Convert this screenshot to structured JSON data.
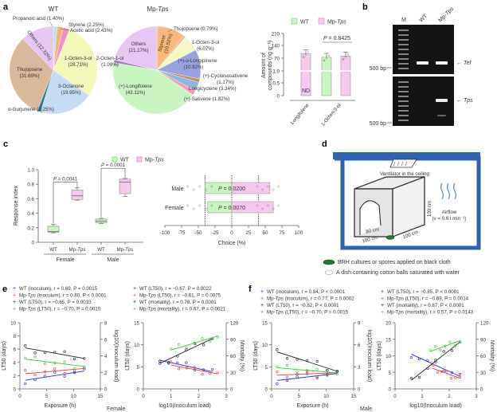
{
  "panels": {
    "a": "a",
    "b": "b",
    "c": "c",
    "d": "d",
    "e": "e",
    "f": "f"
  },
  "chart_data": [
    {
      "id": "a-pie-wt",
      "type": "pie",
      "title": "WT",
      "slices": [
        {
          "label": "Propanoic acid",
          "value": 1.4,
          "text": "Propanoic acid (1.40%)",
          "color": "#b8e6d6"
        },
        {
          "label": "Styrene",
          "value": 2.25,
          "text": "Styrene (2.25%)",
          "color": "#f7b27a"
        },
        {
          "label": "Acetic acid",
          "value": 2.43,
          "text": "Acetic acid (2.43%)",
          "color": "#f68cc3"
        },
        {
          "label": "1-Octen-3-ol",
          "value": 28.71,
          "text": "1-Octen-3-ol (28.71%)",
          "color": "#f3f8b8"
        },
        {
          "label": "3-Octanone",
          "value": 19.95,
          "text": "3-Octanone (19.95%)",
          "color": "#c6dcf5"
        },
        {
          "label": "α-Gurjunene",
          "value": 1.25,
          "text": "α-Gurjunene (1.25%)",
          "color": "#1d7f8c"
        },
        {
          "label": "Thujopsene",
          "value": 31.69,
          "text": "Thujopsene (31.69%)",
          "color": "#d9b99b"
        },
        {
          "label": "Others",
          "value": 12.32,
          "text": "Others (12.32%)",
          "color": "#e8c6f3"
        }
      ]
    },
    {
      "id": "a-pie-mptps",
      "type": "pie",
      "title": "Mp-Tps",
      "slices": [
        {
          "label": "Styrene",
          "value": 10.52,
          "text": "Styrene (10.52%)",
          "color": "#fbb878"
        },
        {
          "label": "Thujopsene",
          "value": 0.79,
          "text": "Thujopsene (0.79%)",
          "color": "#d9b99b"
        },
        {
          "label": "1-Octen-3-ol",
          "value": 6.07,
          "text": "1-Octen-3-ol (6.07%)",
          "color": "#f3f8c4"
        },
        {
          "label": "(+)-α-Longipinene",
          "value": 10.92,
          "text": "(+)-α-Longipinene (10.92%)",
          "color": "#9aa3e0"
        },
        {
          "label": "(+)-Cycloisosativene",
          "value": 1.17,
          "text": "(+)-Cycloisosativene (1.17%)",
          "color": "#c08a50"
        },
        {
          "label": "Longicyclene",
          "value": 3.34,
          "text": "Longicyclene (3.34%)",
          "color": "#8fb4e6"
        },
        {
          "label": "(+)-Sativene",
          "value": 1.82,
          "text": "(+)-Sativene (1.82%)",
          "color": "#f59cae"
        },
        {
          "label": "(+)-Longifolene",
          "value": 43.11,
          "text": "(+)-Longifolene (43.11%)",
          "color": "#c8f5c0"
        },
        {
          "label": "2-Octen-1-ol",
          "value": 1.09,
          "text": "2-Octen-1-ol (1.09%)",
          "color": "#a77bc2"
        },
        {
          "label": "Others",
          "value": 21.17,
          "text": "Others (21.17%)",
          "color": "#e8c6f3"
        }
      ]
    },
    {
      "id": "a-bar",
      "type": "bar",
      "ylabel": "Amount of compounds (ng g⁻¹)",
      "yticks": [
        "0",
        "0.5",
        "1.0",
        "70",
        "140",
        "210"
      ],
      "categories": [
        "Longifolene",
        "1-Octen-3-ol"
      ],
      "legend": [
        "WT",
        "Mp-Tps"
      ],
      "series": [
        {
          "name": "WT",
          "values": [
            0,
            75
          ],
          "nd": [
            true,
            false
          ],
          "color": "#c8f5c0"
        },
        {
          "name": "Mp-Tps",
          "values": [
            95,
            82
          ],
          "color": "#f6c8ee"
        }
      ],
      "nd_label": "ND",
      "annotation": "P = 0.8425"
    },
    {
      "id": "c-box",
      "type": "box",
      "ylabel": "Response index",
      "ylim": [
        0,
        1.0
      ],
      "yticks": [
        "0",
        "0.2",
        "0.4",
        "0.6",
        "0.8",
        "1.0"
      ],
      "groups": [
        "Female",
        "Male"
      ],
      "categories": [
        "WT",
        "Mp-Tps",
        "WT",
        "Mp-Tps"
      ],
      "boxes": [
        {
          "group": "Female",
          "name": "WT",
          "min": 0.13,
          "q1": 0.14,
          "median": 0.15,
          "q3": 0.22,
          "max": 0.25,
          "color": "#c8f5c0"
        },
        {
          "group": "Female",
          "name": "Mp-Tps",
          "min": 0.58,
          "q1": 0.59,
          "median": 0.64,
          "q3": 0.72,
          "max": 0.75,
          "color": "#f6c8ee"
        },
        {
          "group": "Male",
          "name": "WT",
          "min": 0.26,
          "q1": 0.27,
          "median": 0.29,
          "q3": 0.32,
          "max": 0.33,
          "color": "#c8f5c0"
        },
        {
          "group": "Male",
          "name": "Mp-Tps",
          "min": 0.63,
          "q1": 0.67,
          "median": 0.83,
          "q3": 0.87,
          "max": 0.88,
          "color": "#f6c8ee"
        }
      ],
      "annotations": [
        "P = 0.0041",
        "P = 0.0001"
      ]
    },
    {
      "id": "c-choice",
      "type": "bar",
      "orientation": "horizontal",
      "xlabel": "Choice (%)",
      "xlim": [
        -100,
        100
      ],
      "xticks": [
        "-100",
        "-75",
        "-50",
        "-25",
        "0",
        "25",
        "50",
        "75",
        "100"
      ],
      "categories": [
        "Male",
        "Female"
      ],
      "series": [
        {
          "name": "WT",
          "values": [
            -40,
            -36
          ],
          "color": "#c8f5c0"
        },
        {
          "name": "Mp-Tps",
          "values": [
            57,
            62
          ],
          "color": "#f6c8ee"
        }
      ],
      "annotations": [
        "P = 0.0200",
        "P = 0.0070"
      ]
    },
    {
      "id": "e-left",
      "type": "line",
      "xlabel": "Exposure (h)",
      "ylabel": "LT50 (days)",
      "ylabel2": "log10(Inoculum load)",
      "xlim": [
        0,
        15
      ],
      "ylim": [
        0,
        10
      ],
      "y2lim": [
        0,
        8
      ],
      "xticks": [
        "0",
        "5",
        "10",
        "15"
      ],
      "yticks": [
        "0",
        "2",
        "4",
        "6",
        "8",
        "10"
      ],
      "y2ticks": [
        "0",
        "2",
        "4",
        "6",
        "8"
      ],
      "series": [
        {
          "name": "WT (inoculum)",
          "color": "#2a2ad6",
          "line": [
            [
              1,
              1.3
            ],
            [
              12,
              2.7
            ]
          ]
        },
        {
          "name": "Mp-Tps (inoculum)",
          "color": "#e03a3a",
          "line": [
            [
              1,
              2.3
            ],
            [
              12,
              3.1
            ]
          ]
        },
        {
          "name": "WT (LT50)",
          "color": "#222222",
          "line": [
            [
              1,
              6.2
            ],
            [
              12,
              4.6
            ]
          ]
        },
        {
          "name": "Mp-Tps (LT50)",
          "color": "#3cc43c",
          "line": [
            [
              1,
              4.5
            ],
            [
              12,
              3.4
            ]
          ]
        }
      ],
      "footer": "Female"
    },
    {
      "id": "e-right",
      "type": "scatter",
      "xlabel": "log10(Inoculum load)",
      "ylabel": "LT50 (days)",
      "ylabel2": "Mortality (%)",
      "xlim": [
        0,
        3
      ],
      "ylim": [
        0,
        15
      ],
      "y2lim": [
        0,
        120
      ],
      "xticks": [
        "0",
        "1",
        "2",
        "3"
      ],
      "yticks": [
        "0",
        "5",
        "10",
        "15"
      ],
      "y2ticks": [
        "0",
        "30",
        "60",
        "90",
        "120"
      ],
      "series": [
        {
          "name": "WT (LT50)",
          "color": "#2a2ad6",
          "line": [
            [
              0.6,
              6.5
            ],
            [
              2.5,
              3.9
            ]
          ]
        },
        {
          "name": "Mp-Tps (LT50)",
          "color": "#e03a3a",
          "line": [
            [
              1.0,
              5.4
            ],
            [
              2.7,
              3.4
            ]
          ]
        },
        {
          "name": "WT (mortality)",
          "color": "#222222",
          "line": [
            [
              0.6,
              5.8
            ],
            [
              2.5,
              11.4
            ]
          ]
        },
        {
          "name": "Mp-Tps (mortality)",
          "color": "#3cc43c",
          "line": [
            [
              1.0,
              8.8
            ],
            [
              2.7,
              12.0
            ]
          ]
        }
      ]
    },
    {
      "id": "f-left",
      "type": "line",
      "xlabel": "Exposure (h)",
      "ylabel": "LT50 (days)",
      "ylabel2": "log10(Inoculum load)",
      "xlim": [
        0,
        15
      ],
      "ylim": [
        0,
        15
      ],
      "y2lim": [
        0,
        9
      ],
      "xticks": [
        "0",
        "5",
        "10",
        "15"
      ],
      "yticks": [
        "0",
        "5",
        "10",
        "15"
      ],
      "y2ticks": [
        "0",
        "3",
        "6",
        "9"
      ],
      "series": [
        {
          "name": "WT (inoculum)",
          "color": "#2a2ad6",
          "line": [
            [
              1,
              1.9
            ],
            [
              12,
              3.5
            ]
          ]
        },
        {
          "name": "Mp-Tps (inoculum)",
          "color": "#e03a3a",
          "line": [
            [
              1,
              3.1
            ],
            [
              12,
              3.7
            ]
          ]
        },
        {
          "name": "WT (LT50)",
          "color": "#222222",
          "line": [
            [
              1,
              8.4
            ],
            [
              12,
              4.0
            ]
          ]
        },
        {
          "name": "Mp-Tps (LT50)",
          "color": "#3cc43c",
          "line": [
            [
              1,
              4.8
            ],
            [
              12,
              3.6
            ]
          ]
        }
      ],
      "footer": "Male"
    },
    {
      "id": "f-right",
      "type": "scatter",
      "xlabel": "log10(Inoculum load)",
      "ylabel": "LT50 (days)",
      "ylabel2": "Mortality (%)",
      "xlim": [
        0,
        3
      ],
      "ylim": [
        0,
        20
      ],
      "y2lim": [
        0,
        120
      ],
      "xticks": [
        "0",
        "1",
        "2",
        "3"
      ],
      "yticks": [
        "0",
        "5",
        "10",
        "15",
        "20"
      ],
      "y2ticks": [
        "0",
        "30",
        "60",
        "90",
        "120"
      ],
      "series": [
        {
          "name": "WT (LT50)",
          "color": "#2a2ad6",
          "line": [
            [
              0.6,
              10.5
            ],
            [
              2.4,
              3.8
            ]
          ]
        },
        {
          "name": "Mp-Tps (LT50)",
          "color": "#e03a3a",
          "line": [
            [
              1.4,
              6.2
            ],
            [
              2.4,
              3.2
            ]
          ]
        },
        {
          "name": "WT (mortality)",
          "color": "#222222",
          "line": [
            [
              0.6,
              2.6
            ],
            [
              2.4,
              14.2
            ]
          ]
        },
        {
          "name": "Mp-Tps (mortality)",
          "color": "#3cc43c",
          "line": [
            [
              1.3,
              11.3
            ],
            [
              2.4,
              14.6
            ]
          ]
        }
      ]
    }
  ],
  "panel_b": {
    "lanes": [
      "M",
      "WT",
      "Mp-Tps"
    ],
    "top_band": "Tef",
    "bottom_band": "Tps",
    "marker": "500 bp"
  },
  "panel_c": {
    "legend": [
      "WT",
      "Mp-Tps"
    ]
  },
  "panel_d": {
    "ventilator": "Ventilator in the ceiling",
    "airflow": "Airflow",
    "airflow_rate": "(v = 0.6 l min⁻¹)",
    "dims": [
      "100 cm",
      "100 cm",
      "100 cm",
      "80 cm",
      "90 cm"
    ],
    "legend": [
      "BRH cultures or spores applied on black cloth",
      "A dish containing cotton balls saturated with water"
    ],
    "frame_color": "#2f62b0"
  },
  "panel_e_legend": [
    [
      "WT (inoculum), r = 0.69, P = 0.0015",
      "Mp-Tps (inoculum), r = 0.80, P < 0.0001",
      "WT (LT50), r = −0.65, P = 0.0033",
      "Mp-Tps (LT50), r = −0.70, P = 0.0010"
    ],
    [
      "WT (LT50), r = −0.67, P = 0.0022",
      "Mp-Tps (LT50), r = −0.61, P = 0.0075",
      "WT (mortality), r = 0.78, P = 0.0001",
      "Mp-Tps (mortality), r = 0.67, P = 0.0021"
    ]
  ],
  "panel_f_legend": [
    [
      "WT (inoculum), r = 0.84, P < 0.0001",
      "Mp-Tps (inoculum), r = 0.77, P = 0.0002",
      "WT (LT50), r = −0.82, P < 0.0001",
      "Mp-Tps (LT50), r = −0.70, P = 0.0015"
    ],
    [
      "WT (LT50), r = −0.85, P < 0.0001",
      "Mp-Tps (LT50), r = −0.69, P = 0.0014",
      "WT (mortality), r = 0.87, P < 0.0001",
      "Mp-Tps (mortality), r = 0.57, P = 0.0143"
    ]
  ],
  "legend_colors": [
    "#2a2ad6",
    "#e03a3a",
    "#222222",
    "#3cc43c"
  ]
}
